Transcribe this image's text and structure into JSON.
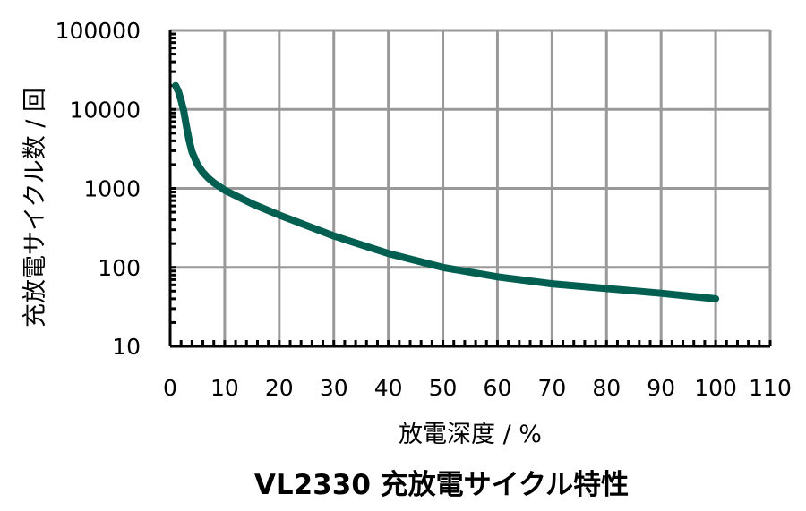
{
  "chart_data": {
    "type": "line",
    "title": "VL2330 充放電サイクル特性",
    "xlabel": "放電深度 / %",
    "ylabel": "充放電サイクル数 / 回",
    "xlim": [
      0,
      110
    ],
    "ylim": [
      10,
      100000
    ],
    "yscale": "log",
    "grid": true,
    "x_ticks": [
      "0",
      "10",
      "20",
      "30",
      "40",
      "50",
      "60",
      "70",
      "80",
      "90",
      "100",
      "110"
    ],
    "y_ticks": [
      "10",
      "100",
      "1000",
      "10000",
      "100000"
    ],
    "series": [
      {
        "color": "#005f50",
        "x": [
          1,
          1.5,
          2,
          2.5,
          3,
          3.5,
          4,
          5,
          6,
          7,
          8,
          10,
          15,
          20,
          30,
          40,
          50,
          60,
          70,
          80,
          90,
          100
        ],
        "y": [
          20000,
          17000,
          13000,
          9500,
          6000,
          4000,
          2900,
          2000,
          1600,
          1350,
          1180,
          950,
          640,
          460,
          250,
          150,
          100,
          76,
          62,
          54,
          47,
          40
        ]
      }
    ]
  }
}
